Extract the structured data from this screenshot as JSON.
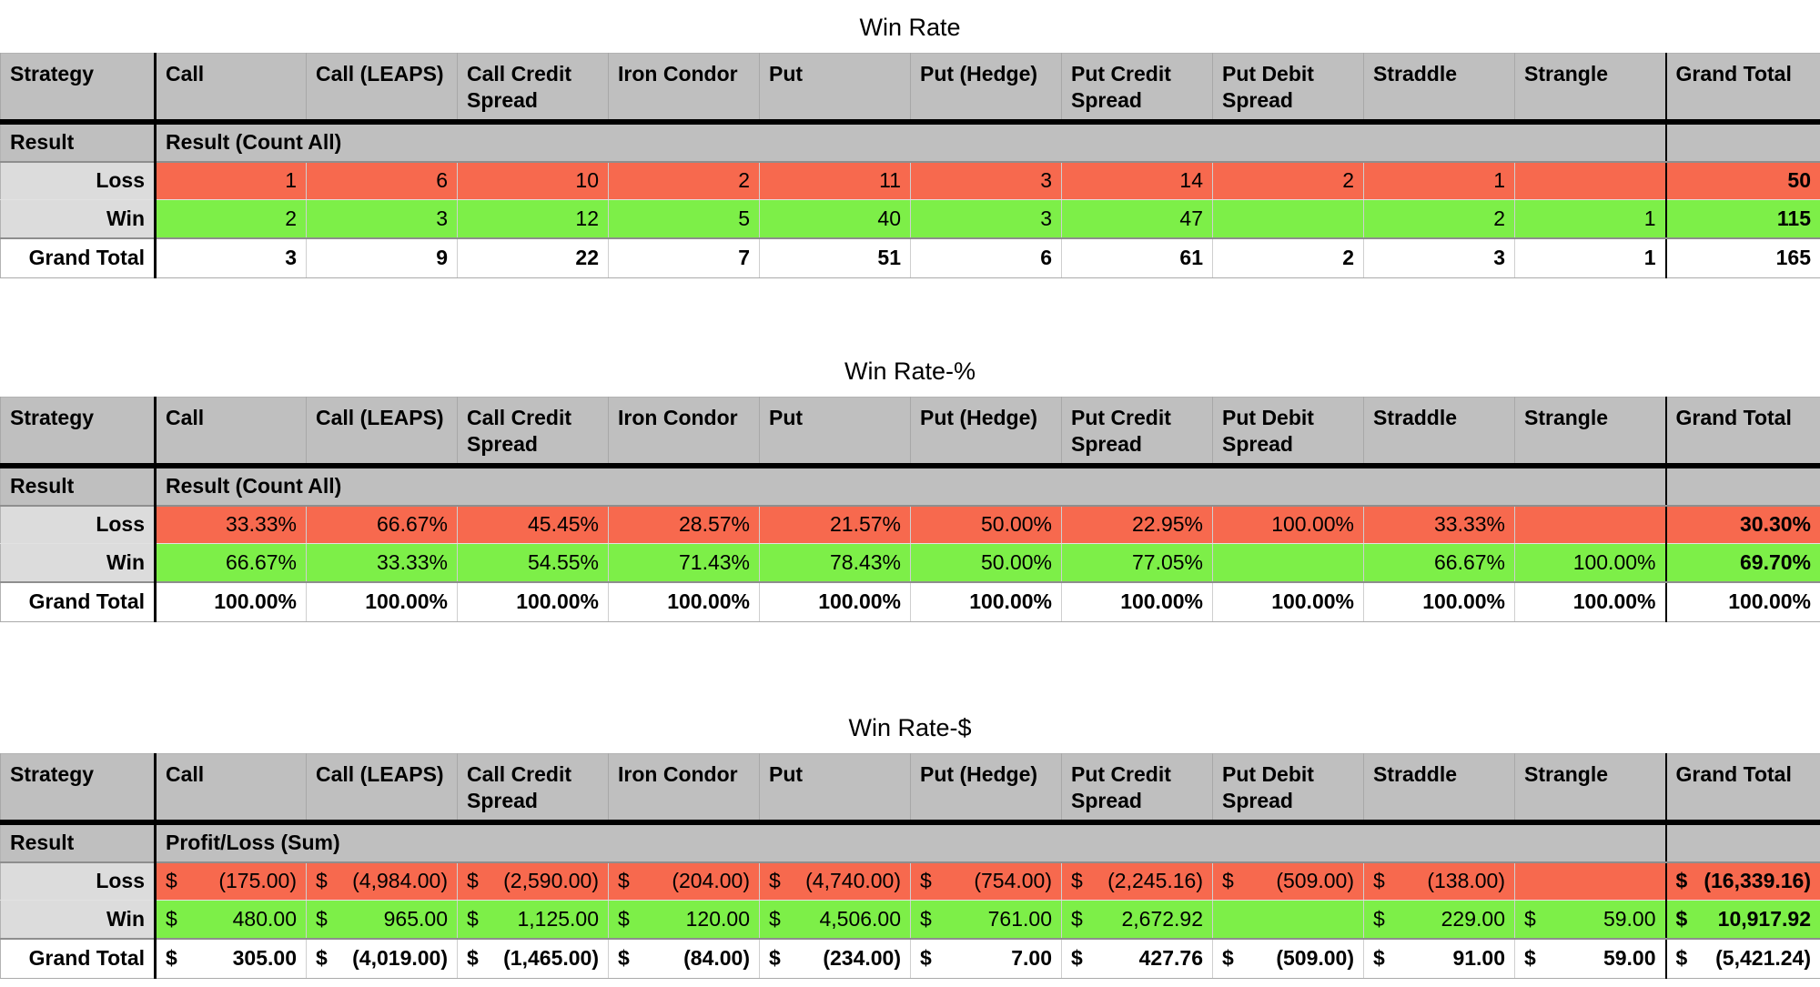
{
  "currency_symbol": "$",
  "colors": {
    "header_bg": "#bfbfbf",
    "row_label_bg": "#dcdcdc",
    "loss_bg": "#f7694e",
    "win_bg": "#7def48",
    "grand_total_bg": "#ffffff",
    "border_black": "#000000"
  },
  "columns": [
    "Strategy",
    "Call",
    "Call (LEAPS)",
    "Call Credit Spread",
    "Iron Condor",
    "Put",
    "Put (Hedge)",
    "Put Credit Spread",
    "Put Debit Spread",
    "Straddle",
    "Strangle",
    "Grand Total"
  ],
  "tables": [
    {
      "title": "Win Rate",
      "currency": false,
      "result_row": {
        "label": "Result",
        "caption": "Result (Count All)"
      },
      "rows": [
        {
          "label": "Loss",
          "kind": "loss",
          "values": [
            "1",
            "6",
            "10",
            "2",
            "11",
            "3",
            "14",
            "2",
            "1",
            "",
            "50"
          ]
        },
        {
          "label": "Win",
          "kind": "win",
          "values": [
            "2",
            "3",
            "12",
            "5",
            "40",
            "3",
            "47",
            "",
            "2",
            "1",
            "115"
          ]
        },
        {
          "label": "Grand Total",
          "kind": "total",
          "values": [
            "3",
            "9",
            "22",
            "7",
            "51",
            "6",
            "61",
            "2",
            "3",
            "1",
            "165"
          ]
        }
      ]
    },
    {
      "title": "Win Rate-%",
      "currency": false,
      "result_row": {
        "label": "Result",
        "caption": "Result (Count All)"
      },
      "rows": [
        {
          "label": "Loss",
          "kind": "loss",
          "values": [
            "33.33%",
            "66.67%",
            "45.45%",
            "28.57%",
            "21.57%",
            "50.00%",
            "22.95%",
            "100.00%",
            "33.33%",
            "",
            "30.30%"
          ]
        },
        {
          "label": "Win",
          "kind": "win",
          "values": [
            "66.67%",
            "33.33%",
            "54.55%",
            "71.43%",
            "78.43%",
            "50.00%",
            "77.05%",
            "",
            "66.67%",
            "100.00%",
            "69.70%"
          ]
        },
        {
          "label": "Grand Total",
          "kind": "total",
          "values": [
            "100.00%",
            "100.00%",
            "100.00%",
            "100.00%",
            "100.00%",
            "100.00%",
            "100.00%",
            "100.00%",
            "100.00%",
            "100.00%",
            "100.00%"
          ]
        }
      ]
    },
    {
      "title": "Win Rate-$",
      "currency": true,
      "result_row": {
        "label": "Result",
        "caption": "Profit/Loss (Sum)"
      },
      "rows": [
        {
          "label": "Loss",
          "kind": "loss",
          "values": [
            "(175.00)",
            "(4,984.00)",
            "(2,590.00)",
            "(204.00)",
            "(4,740.00)",
            "(754.00)",
            "(2,245.16)",
            "(509.00)",
            "(138.00)",
            "",
            "(16,339.16)"
          ]
        },
        {
          "label": "Win",
          "kind": "win",
          "values": [
            "480.00",
            "965.00",
            "1,125.00",
            "120.00",
            "4,506.00",
            "761.00",
            "2,672.92",
            "",
            "229.00",
            "59.00",
            "10,917.92"
          ]
        },
        {
          "label": "Grand Total",
          "kind": "total",
          "values": [
            "305.00",
            "(4,019.00)",
            "(1,465.00)",
            "(84.00)",
            "(234.00)",
            "7.00",
            "427.76",
            "(509.00)",
            "91.00",
            "59.00",
            "(5,421.24)"
          ]
        }
      ]
    }
  ]
}
